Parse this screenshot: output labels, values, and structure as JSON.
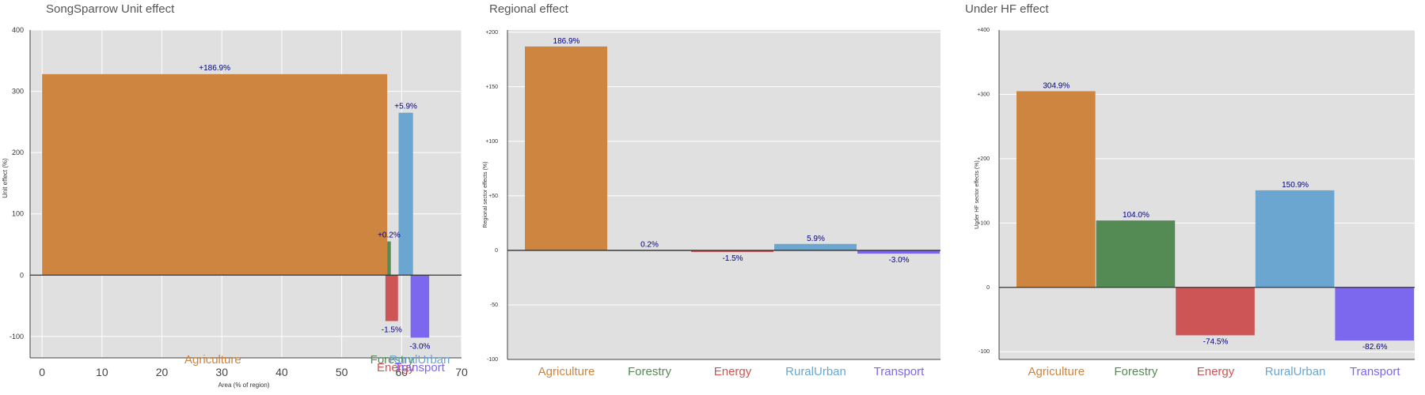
{
  "palette": {
    "panel_bg": "#e0e0e0",
    "grid": "#ffffff",
    "value_label": "#000080",
    "sectors": {
      "Agriculture": "#cd853f",
      "Forestry": "#548b54",
      "Energy": "#cd5555",
      "RuralUrban": "#6aa6d0",
      "Transport": "#7b68ee"
    }
  },
  "chart_data": [
    {
      "type": "bar",
      "variant": "variable-width",
      "title": "SongSparrow Unit effect",
      "xlabel": "Area (% of region)",
      "ylabel": "Unit effect (%)",
      "xlim": [
        -2,
        70
      ],
      "ylim": [
        -135,
        400
      ],
      "xticks": [
        0,
        10,
        20,
        30,
        40,
        50,
        60,
        70
      ],
      "yticks": [
        -100,
        0,
        100,
        200,
        300,
        400
      ],
      "grid": true,
      "categories": [
        "Agriculture",
        "Forestry",
        "Energy",
        "RuralUrban",
        "Transport"
      ],
      "x_start": [
        0,
        57.6,
        57.3,
        59.5,
        61.5
      ],
      "widths": [
        57.6,
        0.6,
        2.1,
        2.4,
        3.1
      ],
      "values": [
        328,
        55,
        -75,
        265,
        -102
      ],
      "value_labels": [
        "+186.9%",
        "+0.2%",
        "-1.5%",
        "+5.9%",
        "-3.0%"
      ]
    },
    {
      "type": "bar",
      "title": "Regional effect",
      "xlabel": "",
      "ylabel": "Regional sector effects (%)",
      "ylim": [
        -100,
        202
      ],
      "yticks": [
        -100,
        -50,
        0,
        50,
        100,
        150,
        200
      ],
      "ytick_labels": [
        "-100",
        "-50",
        "0",
        "+50",
        "+100",
        "+150",
        "+200"
      ],
      "grid": true,
      "categories": [
        "Agriculture",
        "Forestry",
        "Energy",
        "RuralUrban",
        "Transport"
      ],
      "values": [
        186.9,
        0.2,
        -1.5,
        5.9,
        -3.0
      ],
      "value_labels": [
        "186.9%",
        "0.2%",
        "-1.5%",
        "5.9%",
        "-3.0%"
      ]
    },
    {
      "type": "bar",
      "title": "Under HF effect",
      "xlabel": "",
      "ylabel": "Under HF sector effects (%)",
      "ylim": [
        -112,
        400
      ],
      "yticks": [
        -100,
        0,
        100,
        200,
        300,
        400
      ],
      "ytick_labels": [
        "-100",
        "0",
        "+100",
        "+200",
        "+300",
        "+400"
      ],
      "grid": true,
      "categories": [
        "Agriculture",
        "Forestry",
        "Energy",
        "RuralUrban",
        "Transport"
      ],
      "values": [
        304.9,
        104.0,
        -74.5,
        150.9,
        -82.6
      ],
      "value_labels": [
        "304.9%",
        "104.0%",
        "-74.5%",
        "150.9%",
        "-82.6%"
      ]
    }
  ]
}
